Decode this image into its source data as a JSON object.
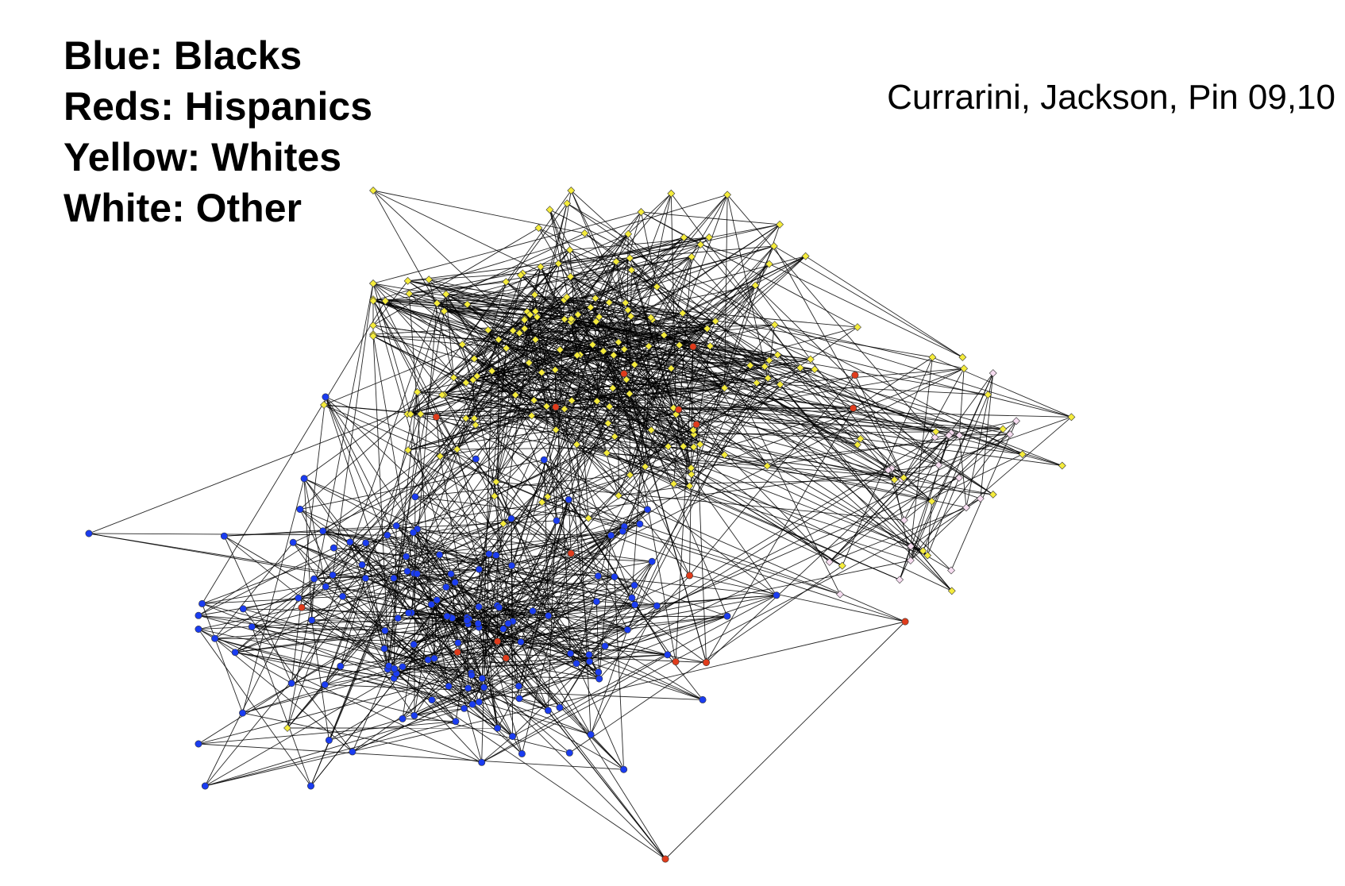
{
  "legend": {
    "items": [
      "Blue: Blacks",
      "Reds: Hispanics",
      "Yellow: Whites",
      "White: Other"
    ]
  },
  "citation": "Currarini, Jackson, Pin 09,10",
  "network": {
    "node_colors": {
      "black": "#1a3cf0",
      "hispanic": "#e03c1c",
      "white": "#f5ec3c",
      "other": "#f6dcf0",
      "edge": "#000000",
      "outline": "#333333"
    }
  }
}
